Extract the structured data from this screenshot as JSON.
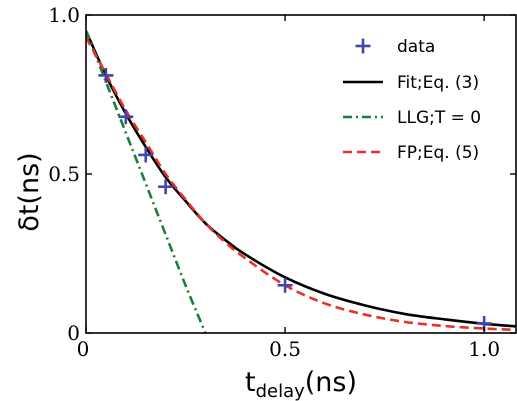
{
  "chart_data": {
    "type": "line",
    "xlabel": {
      "main": "t",
      "sub": "delay",
      "unit": "(ns)"
    },
    "ylabel": {
      "main": "δt",
      "unit": "(ns)"
    },
    "xlim": [
      0,
      1.08
    ],
    "ylim": [
      0,
      1.0
    ],
    "x_ticks": [
      0,
      0.5,
      1.0
    ],
    "x_tick_labels": [
      "0",
      "0.5",
      "1.0"
    ],
    "y_ticks": [
      0,
      0.5,
      1.0
    ],
    "y_tick_labels": [
      "0",
      "0.5",
      "1.0"
    ],
    "grid": false,
    "legend_position": "top-right",
    "series": [
      {
        "name": "data",
        "kind": "scatter",
        "marker": "plus",
        "color": "#3f48a8",
        "x": [
          0.05,
          0.1,
          0.15,
          0.2,
          0.5,
          1.0
        ],
        "y": [
          0.81,
          0.68,
          0.56,
          0.46,
          0.15,
          0.03
        ]
      },
      {
        "name": "Fit;Eq. (3)",
        "kind": "line",
        "style": "solid",
        "color": "#000000",
        "x": [
          0,
          0.05,
          0.1,
          0.15,
          0.2,
          0.25,
          0.3,
          0.35,
          0.4,
          0.5,
          0.6,
          0.7,
          0.8,
          0.9,
          1.0,
          1.08
        ],
        "y": [
          0.95,
          0.81,
          0.69,
          0.585,
          0.49,
          0.415,
          0.345,
          0.292,
          0.247,
          0.175,
          0.123,
          0.087,
          0.06,
          0.043,
          0.029,
          0.021
        ]
      },
      {
        "name": "LLG;T = 0",
        "kind": "line",
        "style": "dashdot",
        "color": "#1a7f3a",
        "x": [
          0,
          0.05,
          0.1,
          0.15,
          0.2,
          0.25,
          0.3
        ],
        "y": [
          0.95,
          0.79,
          0.63,
          0.47,
          0.31,
          0.15,
          0.0
        ]
      },
      {
        "name": "FP;Eq. (5)",
        "kind": "line",
        "style": "dashed",
        "color": "#e8312a",
        "x": [
          0,
          0.05,
          0.1,
          0.15,
          0.2,
          0.25,
          0.3,
          0.35,
          0.4,
          0.5,
          0.6,
          0.7,
          0.8,
          0.9,
          1.0,
          1.08
        ],
        "y": [
          0.93,
          0.815,
          0.7,
          0.6,
          0.5,
          0.42,
          0.345,
          0.285,
          0.235,
          0.15,
          0.093,
          0.058,
          0.035,
          0.022,
          0.014,
          0.01
        ]
      }
    ]
  }
}
